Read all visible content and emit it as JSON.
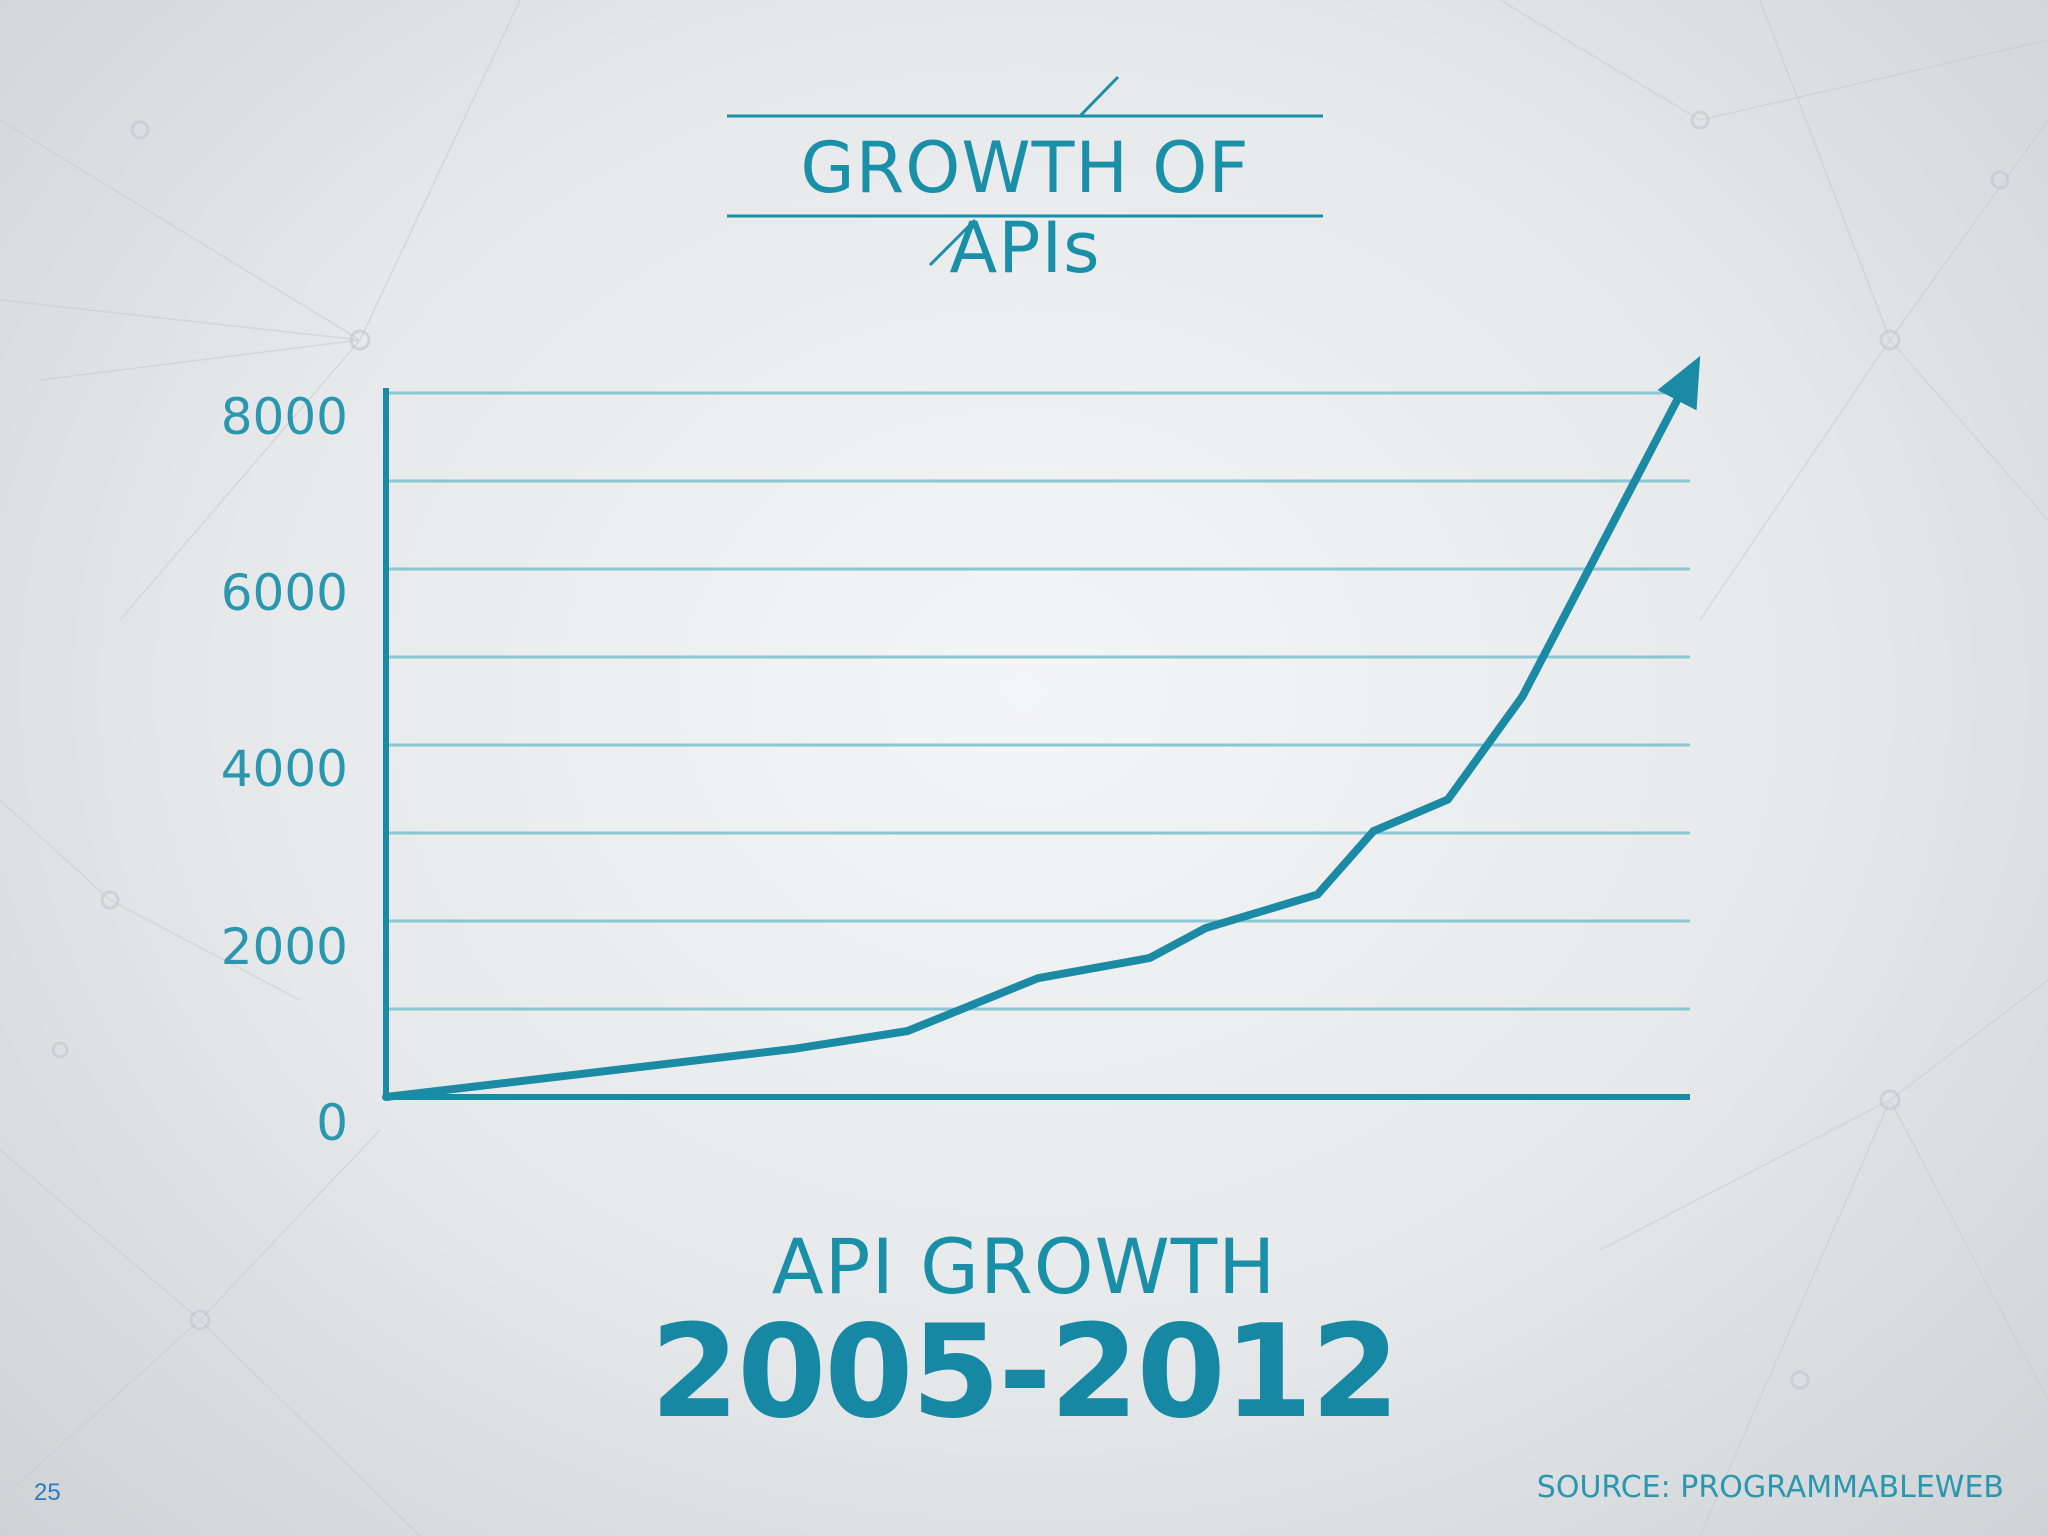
{
  "slide": {
    "title": "GROWTH OF APIs",
    "subtitle": "API GROWTH",
    "years": "2005-2012",
    "source": "SOURCE: PROGRAMMABLEWEB",
    "page_number": "25"
  },
  "colors": {
    "accent": "#1a8fa8",
    "line": "#1b8aa5",
    "grid": "#8cc6d3"
  },
  "chart_data": {
    "type": "line",
    "title": "",
    "xlabel": "",
    "ylabel": "",
    "yticks": [
      "8000",
      "6000",
      "4000",
      "2000",
      "0"
    ],
    "ylim": [
      0,
      8000
    ],
    "xlim": [
      2005,
      2012
    ],
    "grid": true,
    "arrow_end": true,
    "series": [
      {
        "x": [
          2005.0,
          2007.2,
          2007.8,
          2008.5,
          2009.1,
          2009.4,
          2010.0,
          2010.3,
          2010.7,
          2011.1,
          2012.0
        ],
        "values": [
          0,
          550,
          750,
          1350,
          1580,
          1920,
          2300,
          3020,
          3380,
          4550,
          8200
        ]
      }
    ]
  }
}
